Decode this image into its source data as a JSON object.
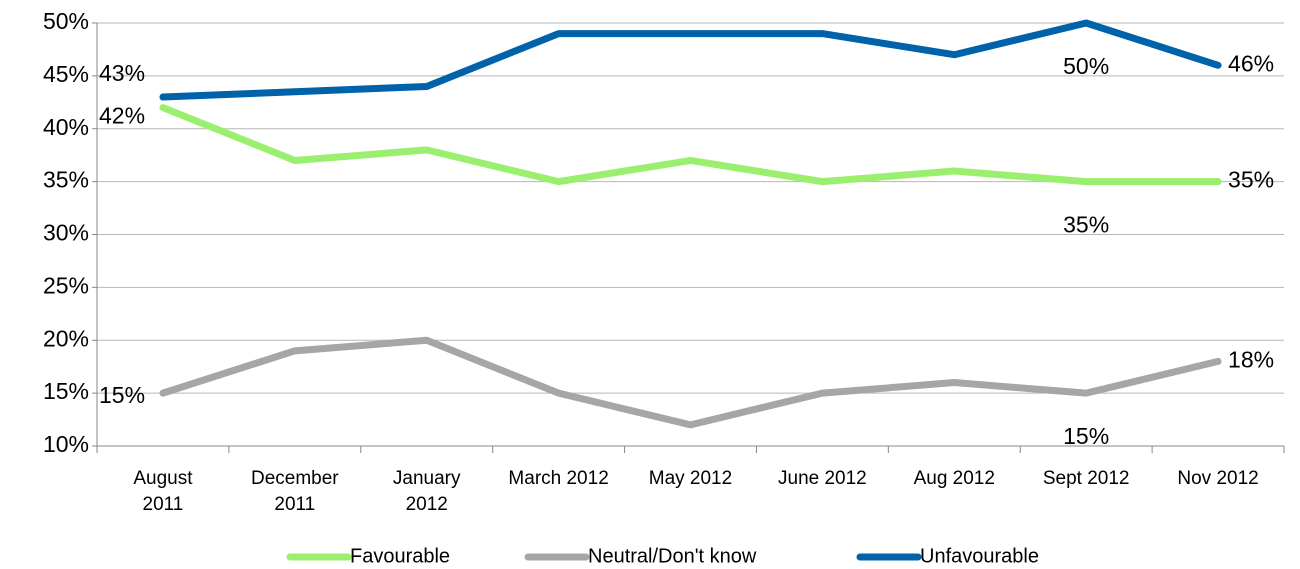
{
  "chart_data": {
    "type": "line",
    "categories": [
      "August\n2011",
      "December\n2011",
      "January\n2012",
      "March 2012",
      "May 2012",
      "June 2012",
      "Aug 2012",
      "Sept 2012",
      "Nov 2012"
    ],
    "series": [
      {
        "name": "Favourable",
        "color": "#9bef6e",
        "values": [
          42,
          37,
          38,
          35,
          37,
          35,
          36,
          35,
          35
        ],
        "value_labels": [
          "42%",
          null,
          null,
          null,
          null,
          null,
          null,
          "35%",
          "35%"
        ]
      },
      {
        "name": "Neutral/Don't know",
        "color": "#a6a6a6",
        "values": [
          15,
          19,
          20,
          15,
          12,
          15,
          16,
          15,
          18
        ],
        "value_labels": [
          "15%",
          null,
          null,
          null,
          null,
          null,
          null,
          "15%",
          "18%"
        ]
      },
      {
        "name": "Unfavourable",
        "color": "#0062a9",
        "values": [
          43,
          43.5,
          44,
          49,
          49,
          49,
          47,
          50,
          46
        ],
        "value_labels": [
          "43%",
          null,
          null,
          null,
          null,
          null,
          null,
          "50%",
          "46%"
        ]
      }
    ],
    "ylim": [
      10,
      50
    ],
    "yticks": [
      {
        "value": 10,
        "label": "10%"
      },
      {
        "value": 15,
        "label": "15%"
      },
      {
        "value": 20,
        "label": "20%"
      },
      {
        "value": 25,
        "label": "25%"
      },
      {
        "value": 30,
        "label": "30%"
      },
      {
        "value": 35,
        "label": "35%"
      },
      {
        "value": 40,
        "label": "40%"
      },
      {
        "value": 45,
        "label": "45%"
      },
      {
        "value": 50,
        "label": "50%"
      }
    ],
    "grid": true,
    "legend": "bottom"
  }
}
